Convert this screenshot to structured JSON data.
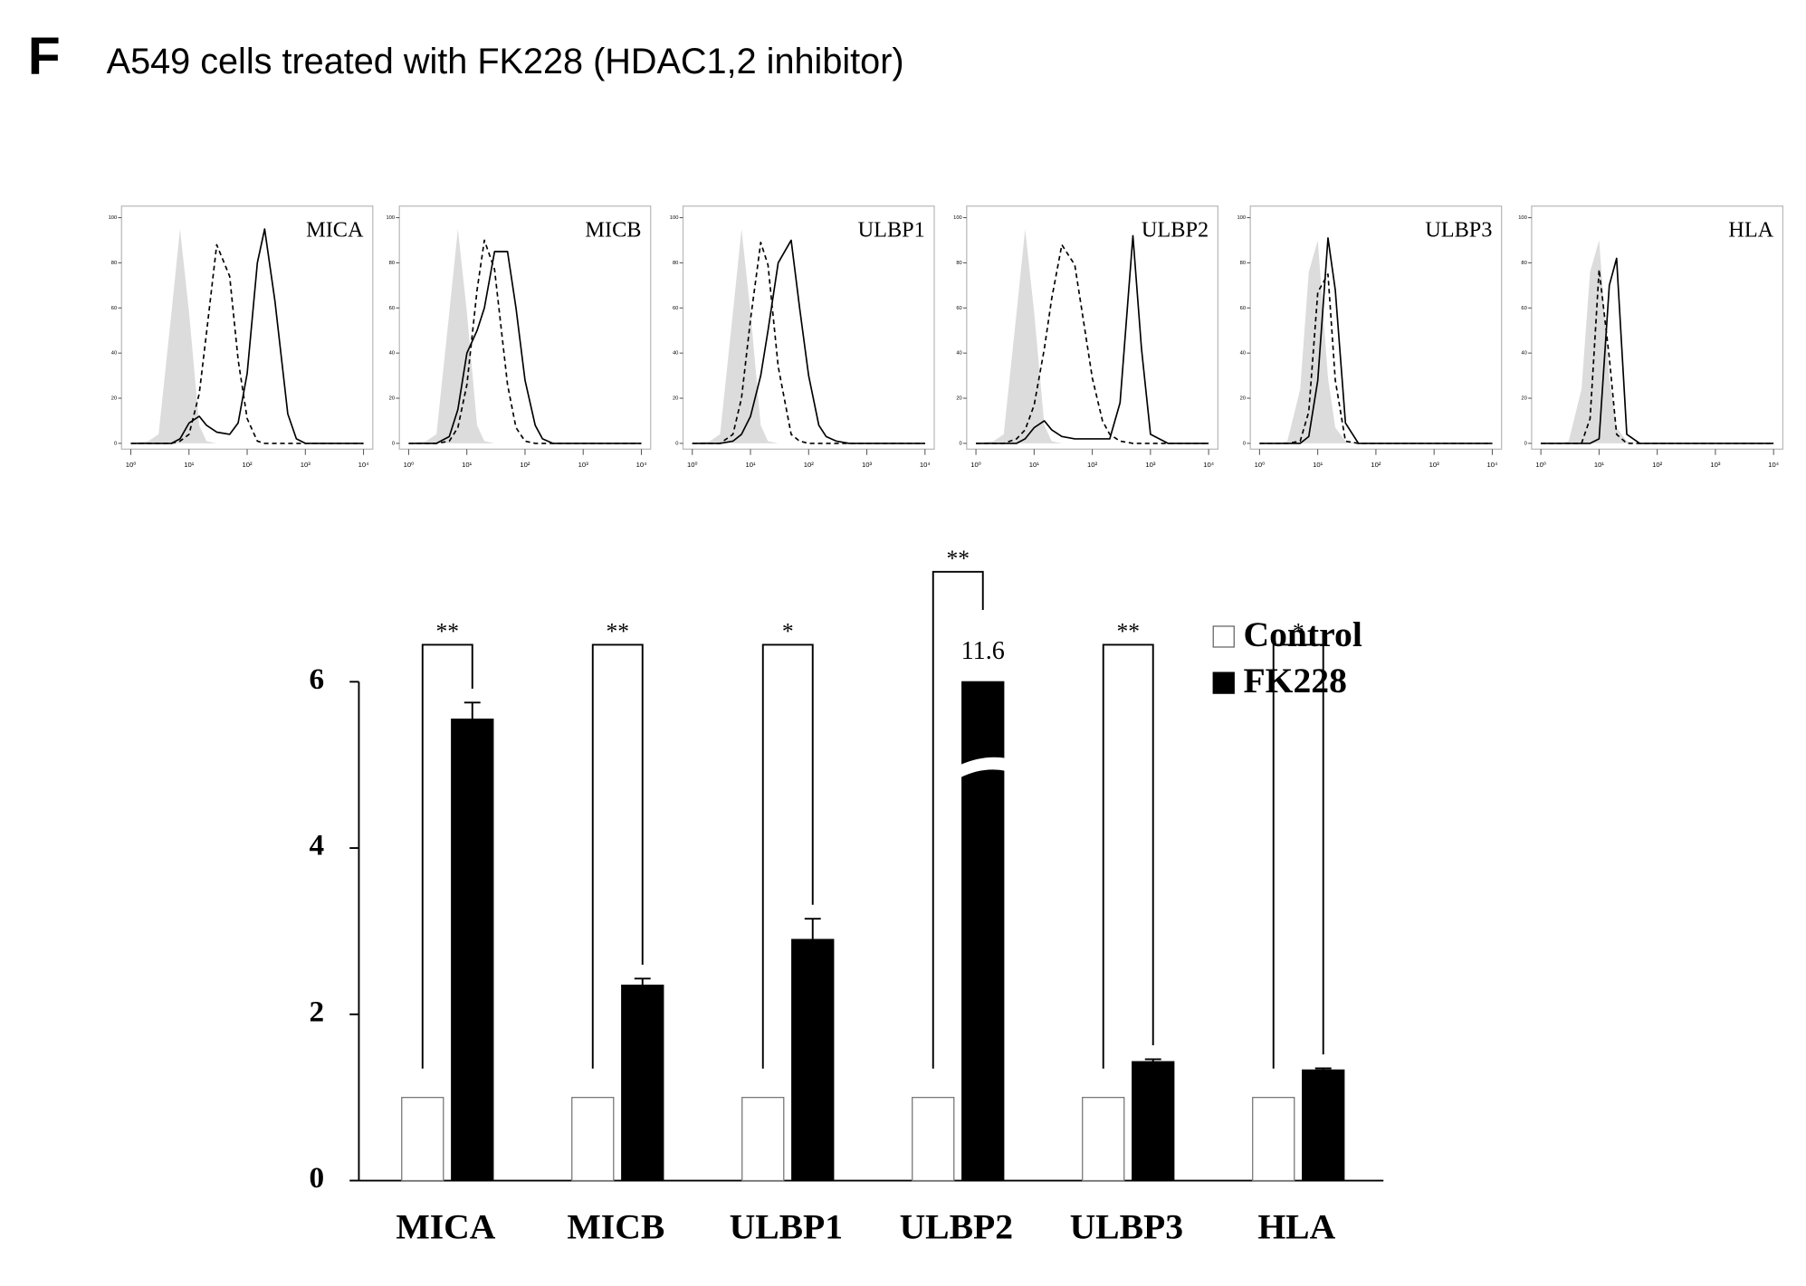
{
  "panel_label": "F",
  "title": "A549 cells treated with FK228 (HDAC1,2 inhibitor)",
  "chart_data": [
    {
      "type": "density",
      "label": "MICA",
      "xscale": "log",
      "x": [
        1,
        2,
        3,
        5,
        7,
        10,
        15,
        20,
        30,
        50,
        70,
        100,
        150,
        200,
        300,
        500,
        700,
        1000,
        2000,
        5000,
        10000
      ],
      "xlim": [
        1,
        10000
      ],
      "xticks": [
        {
          "value": 1,
          "label": "10⁰"
        },
        {
          "value": 10,
          "label": "10¹"
        },
        {
          "value": 100,
          "label": "10²"
        },
        {
          "value": 1000,
          "label": "10³"
        },
        {
          "value": 10000,
          "label": "10⁴"
        }
      ],
      "ylim": [
        0,
        100
      ],
      "yticks": [
        0,
        20,
        40,
        60,
        80,
        100
      ],
      "series": [
        {
          "style": "filled",
          "color": "#dcdcdc",
          "values": [
            0,
            1,
            4,
            58,
            95,
            58,
            8,
            1,
            0,
            0,
            0,
            0,
            0,
            0,
            0,
            0,
            0,
            0,
            0,
            0,
            0
          ]
        },
        {
          "style": "dashed",
          "color": "#000000",
          "values": [
            0,
            0,
            0,
            0,
            1,
            4,
            22,
            49,
            88,
            74,
            37,
            11,
            1,
            0,
            0,
            0,
            0,
            0,
            0,
            0,
            0
          ]
        },
        {
          "style": "solid",
          "color": "#000000",
          "values": [
            0,
            0,
            0,
            0,
            2,
            9,
            12,
            8,
            5,
            4,
            9,
            31,
            80,
            95,
            63,
            13,
            2,
            0,
            0,
            0,
            0
          ]
        }
      ]
    },
    {
      "type": "density",
      "label": "MICB",
      "xscale": "log",
      "x": [
        1,
        2,
        3,
        5,
        7,
        10,
        15,
        20,
        30,
        50,
        70,
        100,
        150,
        200,
        300,
        500,
        700,
        1000,
        2000,
        5000,
        10000
      ],
      "xlim": [
        1,
        10000
      ],
      "xticks": [
        {
          "value": 1,
          "label": "10⁰"
        },
        {
          "value": 10,
          "label": "10¹"
        },
        {
          "value": 100,
          "label": "10²"
        },
        {
          "value": 1000,
          "label": "10³"
        },
        {
          "value": 10000,
          "label": "10⁴"
        }
      ],
      "ylim": [
        0,
        100
      ],
      "yticks": [
        0,
        20,
        40,
        60,
        80,
        100
      ],
      "series": [
        {
          "style": "filled",
          "color": "#dcdcdc",
          "values": [
            0,
            1,
            4,
            58,
            95,
            58,
            8,
            1,
            0,
            0,
            0,
            0,
            0,
            0,
            0,
            0,
            0,
            0,
            0,
            0,
            0
          ]
        },
        {
          "style": "dashed",
          "color": "#000000",
          "values": [
            0,
            0,
            0,
            1,
            7,
            26,
            68,
            90,
            77,
            26,
            7,
            1,
            0,
            0,
            0,
            0,
            0,
            0,
            0,
            0,
            0
          ]
        },
        {
          "style": "solid",
          "color": "#000000",
          "values": [
            0,
            0,
            0,
            3,
            15,
            40,
            50,
            60,
            85,
            85,
            60,
            28,
            8,
            2,
            0,
            0,
            0,
            0,
            0,
            0,
            0
          ]
        }
      ]
    },
    {
      "type": "density",
      "label": "ULBP1",
      "xscale": "log",
      "x": [
        1,
        2,
        3,
        5,
        7,
        10,
        15,
        20,
        30,
        50,
        70,
        100,
        150,
        200,
        300,
        500,
        700,
        1000,
        2000,
        5000,
        10000
      ],
      "xlim": [
        1,
        10000
      ],
      "xticks": [
        {
          "value": 1,
          "label": "10⁰"
        },
        {
          "value": 10,
          "label": "10¹"
        },
        {
          "value": 100,
          "label": "10²"
        },
        {
          "value": 1000,
          "label": "10³"
        },
        {
          "value": 10000,
          "label": "10⁴"
        }
      ],
      "ylim": [
        0,
        100
      ],
      "yticks": [
        0,
        20,
        40,
        60,
        80,
        100
      ],
      "series": [
        {
          "style": "filled",
          "color": "#dcdcdc",
          "values": [
            0,
            1,
            4,
            58,
            95,
            58,
            8,
            1,
            0,
            0,
            0,
            0,
            0,
            0,
            0,
            0,
            0,
            0,
            0,
            0,
            0
          ]
        },
        {
          "style": "dashed",
          "color": "#000000",
          "values": [
            0,
            0,
            0,
            4,
            20,
            55,
            89,
            79,
            34,
            4,
            1,
            0,
            0,
            0,
            0,
            0,
            0,
            0,
            0,
            0,
            0
          ]
        },
        {
          "style": "solid",
          "color": "#000000",
          "values": [
            0,
            0,
            0,
            1,
            4,
            12,
            30,
            50,
            80,
            90,
            60,
            30,
            8,
            3,
            1,
            0,
            0,
            0,
            0,
            0,
            0
          ]
        }
      ]
    },
    {
      "type": "density",
      "label": "ULBP2",
      "xscale": "log",
      "x": [
        1,
        2,
        3,
        5,
        7,
        10,
        15,
        20,
        30,
        50,
        70,
        100,
        150,
        200,
        300,
        500,
        700,
        1000,
        2000,
        5000,
        10000
      ],
      "xlim": [
        1,
        10000
      ],
      "xticks": [
        {
          "value": 1,
          "label": "10⁰"
        },
        {
          "value": 10,
          "label": "10¹"
        },
        {
          "value": 100,
          "label": "10²"
        },
        {
          "value": 1000,
          "label": "10³"
        },
        {
          "value": 10000,
          "label": "10⁴"
        }
      ],
      "ylim": [
        0,
        100
      ],
      "yticks": [
        0,
        20,
        40,
        60,
        80,
        100
      ],
      "series": [
        {
          "style": "filled",
          "color": "#dcdcdc",
          "values": [
            0,
            1,
            4,
            58,
            95,
            58,
            8,
            1,
            0,
            0,
            0,
            0,
            0,
            0,
            0,
            0,
            0,
            0,
            0,
            0,
            0
          ]
        },
        {
          "style": "dashed",
          "color": "#000000",
          "values": [
            0,
            0,
            0,
            2,
            6,
            17,
            42,
            64,
            88,
            79,
            55,
            29,
            10,
            4,
            1,
            0,
            0,
            0,
            0,
            0,
            0
          ]
        },
        {
          "style": "solid",
          "color": "#000000",
          "values": [
            0,
            0,
            0,
            0,
            2,
            7,
            10,
            6,
            3,
            2,
            2,
            2,
            2,
            2,
            18,
            92,
            42,
            4,
            0,
            0,
            0
          ]
        }
      ]
    },
    {
      "type": "density",
      "label": "ULBP3",
      "xscale": "log",
      "x": [
        1,
        2,
        3,
        5,
        7,
        10,
        15,
        20,
        30,
        50,
        70,
        100,
        150,
        200,
        300,
        500,
        700,
        1000,
        2000,
        5000,
        10000
      ],
      "xlim": [
        1,
        10000
      ],
      "xticks": [
        {
          "value": 1,
          "label": "10⁰"
        },
        {
          "value": 10,
          "label": "10¹"
        },
        {
          "value": 100,
          "label": "10²"
        },
        {
          "value": 1000,
          "label": "10³"
        },
        {
          "value": 10000,
          "label": "10⁴"
        }
      ],
      "ylim": [
        0,
        100
      ],
      "yticks": [
        0,
        20,
        40,
        60,
        80,
        100
      ],
      "series": [
        {
          "style": "filled",
          "color": "#dcdcdc",
          "values": [
            0,
            0,
            1,
            24,
            76,
            90,
            29,
            7,
            1,
            0,
            0,
            0,
            0,
            0,
            0,
            0,
            0,
            0,
            0,
            0,
            0
          ]
        },
        {
          "style": "dashed",
          "color": "#000000",
          "values": [
            0,
            0,
            0,
            1,
            14,
            67,
            75,
            28,
            1,
            0,
            0,
            0,
            0,
            0,
            0,
            0,
            0,
            0,
            0,
            0,
            0
          ]
        },
        {
          "style": "solid",
          "color": "#000000",
          "values": [
            0,
            0,
            0,
            0,
            3,
            28,
            91,
            68,
            9,
            0,
            0,
            0,
            0,
            0,
            0,
            0,
            0,
            0,
            0,
            0,
            0
          ]
        }
      ]
    },
    {
      "type": "density",
      "label": "HLA",
      "xscale": "log",
      "x": [
        1,
        2,
        3,
        5,
        7,
        10,
        15,
        20,
        30,
        50,
        70,
        100,
        150,
        200,
        300,
        500,
        700,
        1000,
        2000,
        5000,
        10000
      ],
      "xlim": [
        1,
        10000
      ],
      "xticks": [
        {
          "value": 1,
          "label": "10⁰"
        },
        {
          "value": 10,
          "label": "10¹"
        },
        {
          "value": 100,
          "label": "10²"
        },
        {
          "value": 1000,
          "label": "10³"
        },
        {
          "value": 10000,
          "label": "10⁴"
        }
      ],
      "ylim": [
        0,
        100
      ],
      "yticks": [
        0,
        20,
        40,
        60,
        80,
        100
      ],
      "series": [
        {
          "style": "filled",
          "color": "#dcdcdc",
          "values": [
            0,
            0,
            1,
            24,
            76,
            90,
            29,
            7,
            1,
            0,
            0,
            0,
            0,
            0,
            0,
            0,
            0,
            0,
            0,
            0,
            0
          ]
        },
        {
          "style": "dashed",
          "color": "#000000",
          "values": [
            0,
            0,
            0,
            0,
            11,
            77,
            38,
            4,
            0,
            0,
            0,
            0,
            0,
            0,
            0,
            0,
            0,
            0,
            0,
            0,
            0
          ]
        },
        {
          "style": "solid",
          "color": "#000000",
          "values": [
            0,
            0,
            0,
            0,
            0,
            2,
            70,
            82,
            4,
            0,
            0,
            0,
            0,
            0,
            0,
            0,
            0,
            0,
            0,
            0,
            0
          ]
        }
      ]
    },
    {
      "type": "bar",
      "categories": [
        "MICA",
        "MICB",
        "ULBP1",
        "ULBP2",
        "ULBP3",
        "HLA"
      ],
      "series": [
        {
          "name": "Control",
          "color": "#ffffff",
          "values": [
            1,
            1,
            1,
            1,
            1,
            1
          ]
        },
        {
          "name": "FK228",
          "color": "#000000",
          "values": [
            5.55,
            2.35,
            2.9,
            11.6,
            1.43,
            1.33
          ],
          "errors": [
            0.2,
            0.08,
            0.25,
            null,
            0.03,
            0.02
          ],
          "value_labels": [
            null,
            null,
            null,
            "11.6",
            null,
            null
          ]
        }
      ],
      "ylim": [
        0,
        6
      ],
      "yticks": [
        0,
        2,
        4,
        6
      ],
      "annotations": [
        "**",
        "**",
        "*",
        "**",
        "**",
        "*"
      ],
      "legend": "upper right",
      "axis_break": true
    }
  ]
}
